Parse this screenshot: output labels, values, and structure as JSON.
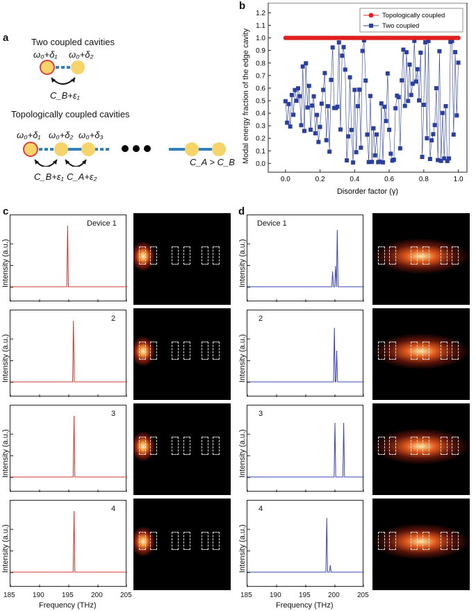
{
  "panel_a": {
    "label": "a",
    "two_title": "Two coupled cavities",
    "topo_title": "Topologically coupled cavities",
    "w1": "ω₀+δ₁",
    "w2": "ω₀+δ₂",
    "w3": "ω₀+δ₃",
    "cb_eps1": "C_B+ε₁",
    "ca_eps2": "C_A+ε₂",
    "ca_gt_cb": "C_A > C_B",
    "cav_red": "#e23b3b",
    "cav_fill": "#f7d46a",
    "link_color": "#2f7fc1"
  },
  "chart_data": [
    {
      "panel": "b",
      "type": "scatter",
      "title": "",
      "xlabel": "Disorder factor (γ)",
      "ylabel": "Modal energy fraction of the edge cavity",
      "xlim": [
        -0.1,
        1.05
      ],
      "ylim": [
        -0.07,
        1.28
      ],
      "xticks": [
        "0.0",
        "0.2",
        "0.4",
        "0.6",
        "0.8",
        "1.0"
      ],
      "yticks": [
        "0.0",
        "0.1",
        "0.2",
        "0.3",
        "0.4",
        "0.5",
        "0.6",
        "0.7",
        "0.8",
        "0.9",
        "1.0",
        "1.1",
        "1.2"
      ],
      "legend_position": "top-right",
      "series": [
        {
          "name": "Topologically coupled",
          "marker": "circle",
          "color": "#e02020",
          "value_at_all_gamma": 1.0,
          "gamma_range": [
            0,
            1
          ]
        },
        {
          "name": "Two coupled",
          "marker": "square",
          "color": "#2a3f9f",
          "value_envelope": "spreads from 0.5 at γ=0 to 0.0–1.0 at γ≥0.5",
          "gamma_range": [
            0,
            1
          ]
        }
      ]
    },
    {
      "panel": "c",
      "type": "line",
      "xlabel": "Frequency (THz)",
      "ylabel": "Intensity (a.u.)",
      "xlim": [
        185,
        205
      ],
      "xticks": [
        "185",
        "190",
        "195",
        "200",
        "205"
      ],
      "color": "#d0342c",
      "devices": [
        {
          "label": "Device 1",
          "peaks": [
            194.8
          ]
        },
        {
          "label": "2",
          "peaks": [
            195.8
          ]
        },
        {
          "label": "3",
          "peaks": [
            195.9
          ]
        },
        {
          "label": "4",
          "peaks": [
            195.9
          ]
        }
      ]
    },
    {
      "panel": "d",
      "type": "line",
      "xlabel": "Frequency (THz)",
      "ylabel": "Intensity (a.u.)",
      "xlim": [
        185,
        205
      ],
      "xticks": [
        "185",
        "190",
        "195",
        "200",
        "205"
      ],
      "color": "#3a44b0",
      "devices": [
        {
          "label": "Device 1",
          "peaks": [
            199.6,
            200.1,
            200.4
          ]
        },
        {
          "label": "2",
          "peaks": [
            199.9,
            200.3
          ]
        },
        {
          "label": "3",
          "peaks": [
            200.0,
            201.5
          ]
        },
        {
          "label": "4",
          "peaks": [
            198.6,
            199.2
          ]
        }
      ]
    }
  ],
  "panel_labels": {
    "b": "b",
    "c": "c",
    "d": "d"
  }
}
